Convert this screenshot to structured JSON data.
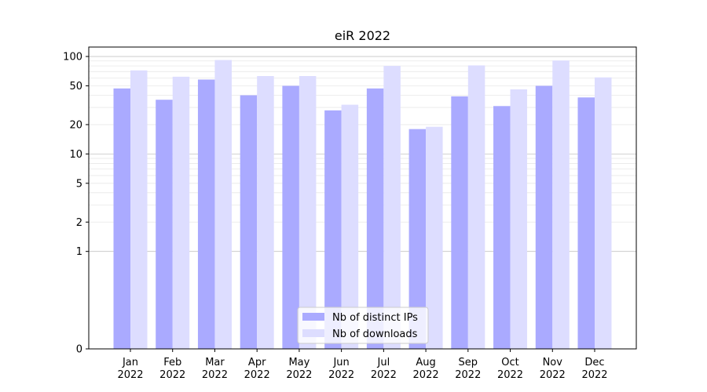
{
  "chart_data": {
    "type": "bar",
    "title": "eiR 2022",
    "xlabel": "",
    "ylabel": "",
    "scale": "symlog",
    "categories": [
      [
        "Jan",
        "2022"
      ],
      [
        "Feb",
        "2022"
      ],
      [
        "Mar",
        "2022"
      ],
      [
        "Apr",
        "2022"
      ],
      [
        "May",
        "2022"
      ],
      [
        "Jun",
        "2022"
      ],
      [
        "Jul",
        "2022"
      ],
      [
        "Aug",
        "2022"
      ],
      [
        "Sep",
        "2022"
      ],
      [
        "Oct",
        "2022"
      ],
      [
        "Nov",
        "2022"
      ],
      [
        "Dec",
        "2022"
      ]
    ],
    "series": [
      {
        "name": "Nb of distinct IPs",
        "color": "#aaaaff",
        "values": [
          47,
          36,
          58,
          40,
          50,
          28,
          47,
          18,
          39,
          31,
          50,
          38
        ]
      },
      {
        "name": "Nb of downloads",
        "color": "#ddddff",
        "values": [
          72,
          62,
          92,
          63,
          63,
          32,
          80,
          19,
          81,
          46,
          91,
          61
        ]
      }
    ],
    "yticks": [
      0,
      1,
      2,
      5,
      10,
      20,
      50,
      100
    ],
    "ylim": [
      0,
      125
    ],
    "legend_position": "lower center",
    "grid": true
  }
}
